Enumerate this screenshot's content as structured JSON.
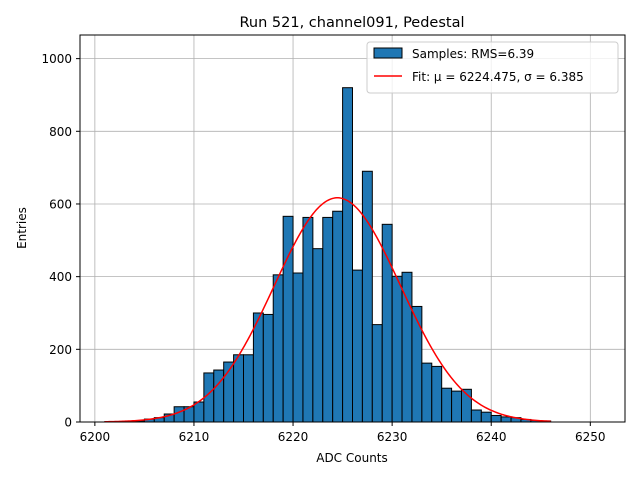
{
  "chart_data": {
    "type": "bar",
    "title": "Run 521, channel091, Pedestal",
    "xlabel": "ADC Counts",
    "ylabel": "Entries",
    "xlim": [
      6198.5,
      6253.5
    ],
    "ylim": [
      0,
      1065
    ],
    "xticks": [
      6200,
      6210,
      6220,
      6230,
      6240,
      6250
    ],
    "yticks": [
      0,
      200,
      400,
      600,
      800,
      1000
    ],
    "grid": true,
    "legend_position": "top-right",
    "bin_width": 1,
    "series": [
      {
        "name": "Samples: RMS=6.39",
        "kind": "histogram",
        "color": "#1f77b4",
        "edge_color": "#000000",
        "bins_start": [
          6201,
          6202,
          6203,
          6204,
          6205,
          6206,
          6207,
          6208,
          6209,
          6210,
          6211,
          6212,
          6213,
          6214,
          6215,
          6216,
          6217,
          6218,
          6219,
          6220,
          6221,
          6222,
          6223,
          6224,
          6225,
          6226,
          6227,
          6228,
          6229,
          6230,
          6231,
          6232,
          6233,
          6234,
          6235,
          6236,
          6237,
          6238,
          6239,
          6240,
          6241,
          6242,
          6243,
          6244,
          6245
        ],
        "counts": [
          1,
          1,
          2,
          3,
          8,
          12,
          22,
          42,
          42,
          55,
          135,
          143,
          165,
          185,
          185,
          300,
          296,
          405,
          566,
          410,
          563,
          477,
          563,
          580,
          920,
          418,
          690,
          268,
          544,
          401,
          412,
          318,
          162,
          153,
          93,
          85,
          90,
          33,
          27,
          18,
          14,
          12,
          7,
          4,
          3
        ]
      },
      {
        "name": "Fit: μ = 6224.475, σ = 6.385",
        "kind": "gaussian",
        "color": "#ff0000",
        "mu": 6224.475,
        "sigma": 6.385,
        "amplitude": 617,
        "x_range": [
          6201,
          6246
        ]
      }
    ]
  }
}
